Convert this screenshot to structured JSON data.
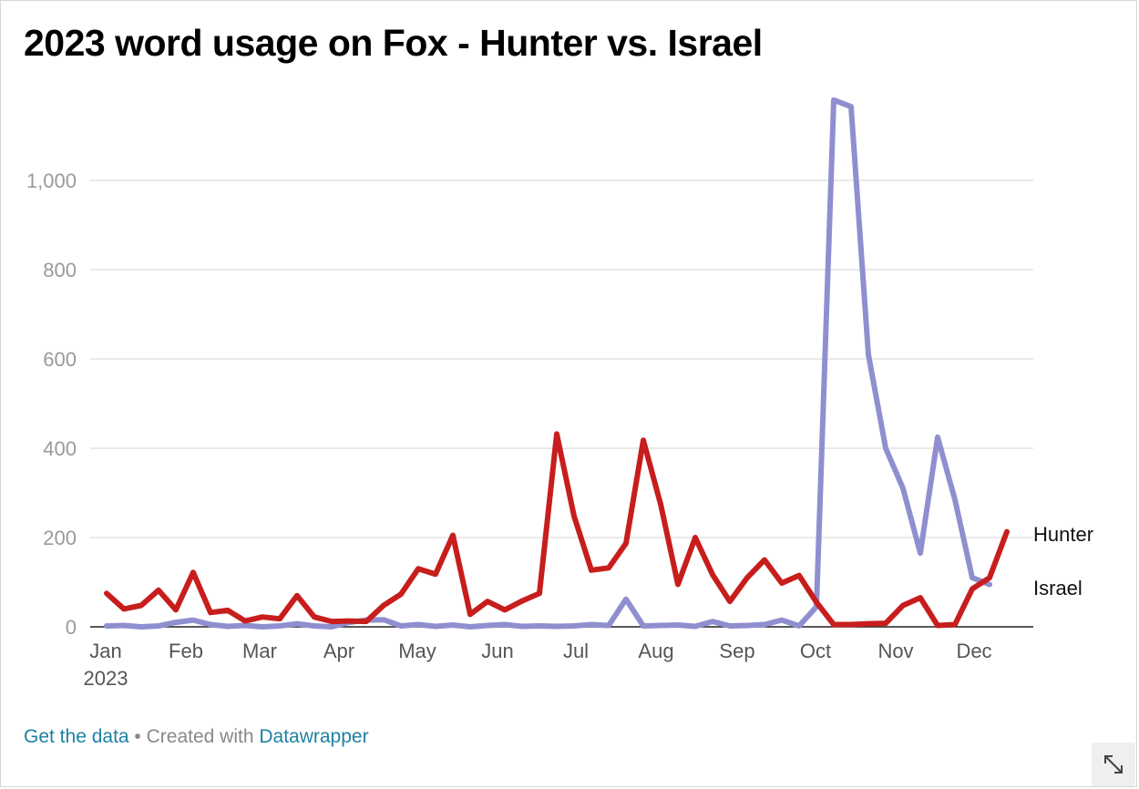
{
  "header": {
    "title": "2023 word usage on Fox - Hunter vs. Israel"
  },
  "footer": {
    "get_data": "Get the data",
    "separator": " • ",
    "created_with": "Created with ",
    "datawrapper": "Datawrapper"
  },
  "icons": {
    "expand": "expand-diagonal-icon"
  },
  "chart_data": {
    "type": "line",
    "title": "2023 word usage on Fox - Hunter vs. Israel",
    "xlabel": "",
    "ylabel": "",
    "ylim": [
      0,
      1200
    ],
    "yticks": [
      0,
      200,
      400,
      600,
      800,
      1000
    ],
    "ytick_labels": [
      "0",
      "200",
      "400",
      "600",
      "800",
      "1,000"
    ],
    "x_tick_labels": [
      "Jan",
      "Feb",
      "Mar",
      "Apr",
      "May",
      "Jun",
      "Jul",
      "Aug",
      "Sep",
      "Oct",
      "Nov",
      "Dec"
    ],
    "x_tick_sublabel": "2023",
    "grid": true,
    "series": [
      {
        "name": "Hunter",
        "color": "#c71e1d",
        "values": [
          75,
          40,
          48,
          82,
          38,
          122,
          32,
          37,
          13,
          22,
          18,
          70,
          22,
          12,
          13,
          12,
          48,
          73,
          130,
          118,
          205,
          28,
          57,
          38,
          58,
          75,
          432,
          248,
          127,
          132,
          187,
          418,
          275,
          95,
          200,
          117,
          57,
          110,
          150,
          98,
          115,
          55,
          5,
          5,
          7,
          8,
          48,
          65,
          3,
          5,
          85,
          110,
          213
        ]
      },
      {
        "name": "Israel",
        "color": "#8f8fd0",
        "values": [
          2,
          3,
          0,
          2,
          10,
          15,
          5,
          1,
          3,
          0,
          2,
          7,
          2,
          0,
          10,
          15,
          16,
          2,
          5,
          1,
          4,
          0,
          3,
          5,
          1,
          2,
          1,
          2,
          5,
          3,
          62,
          2,
          3,
          4,
          1,
          12,
          2,
          3,
          5,
          15,
          2,
          45,
          1180,
          1165,
          610,
          400,
          310,
          165,
          425,
          285,
          110,
          95
        ]
      }
    ]
  }
}
